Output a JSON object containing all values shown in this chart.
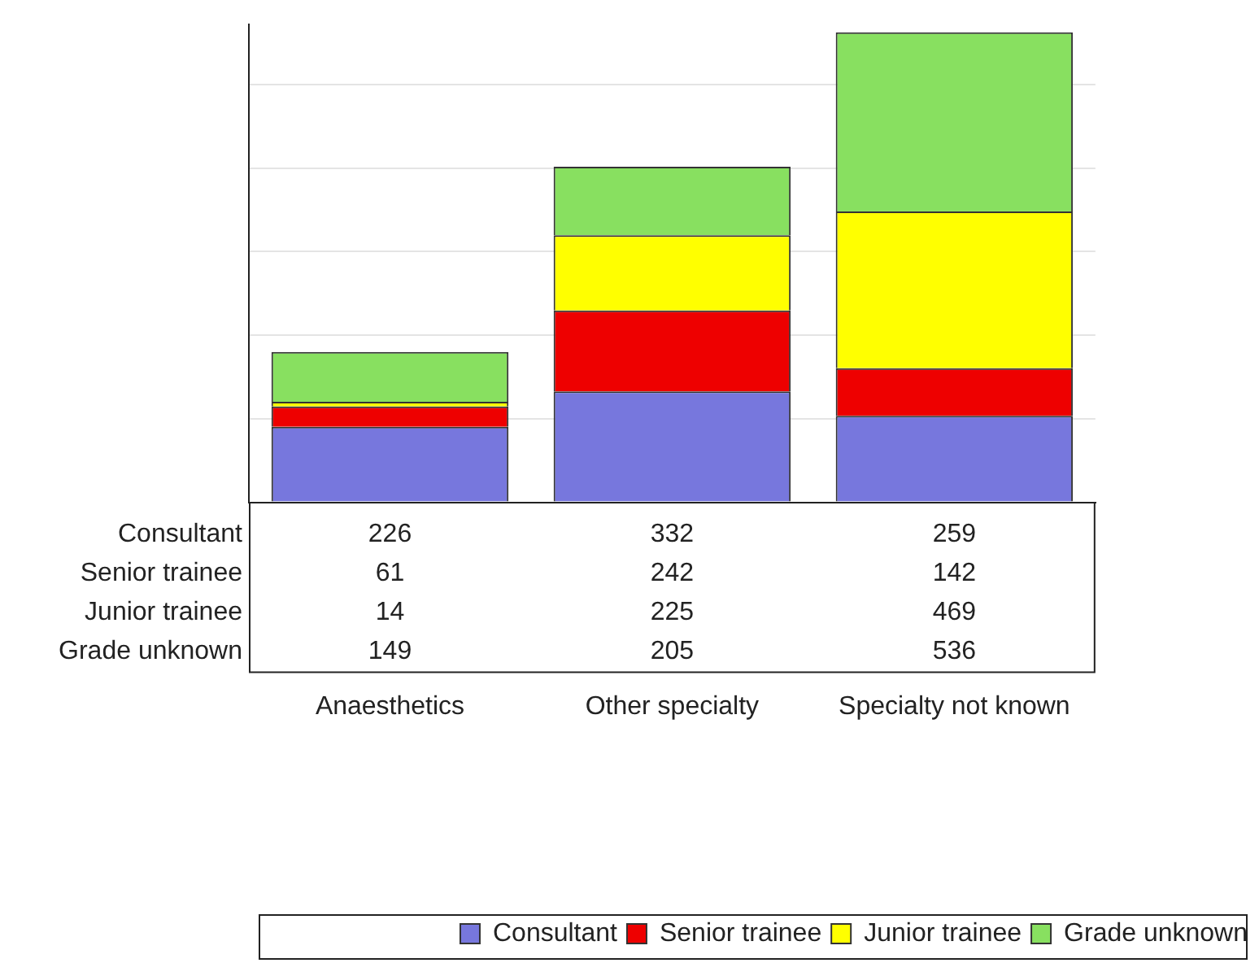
{
  "chart_data": {
    "type": "bar",
    "stacked": true,
    "categories": [
      "Anaesthetics",
      "Other specialty",
      "Specialty not known"
    ],
    "series": [
      {
        "name": "Consultant",
        "color": "#7777dd",
        "values": [
          226,
          332,
          259
        ]
      },
      {
        "name": "Senior trainee",
        "color": "#ee0000",
        "values": [
          61,
          242,
          142
        ]
      },
      {
        "name": "Junior trainee",
        "color": "#ffff00",
        "values": [
          14,
          225,
          469
        ]
      },
      {
        "name": "Grade unknown",
        "color": "#88e060",
        "values": [
          149,
          205,
          536
        ]
      }
    ],
    "ylim": [
      0,
      1430
    ],
    "yticks": [
      {
        "value": 0,
        "label": null
      },
      {
        "value": 250,
        "label": null
      },
      {
        "value": 500,
        "label": null
      },
      {
        "value": 750,
        "label": null
      },
      {
        "value": 1000,
        "label": null
      },
      {
        "value": 1250,
        "label": null
      }
    ],
    "grid": "y",
    "tick_labels": "x",
    "data_labels": true,
    "legend": "bottom"
  }
}
